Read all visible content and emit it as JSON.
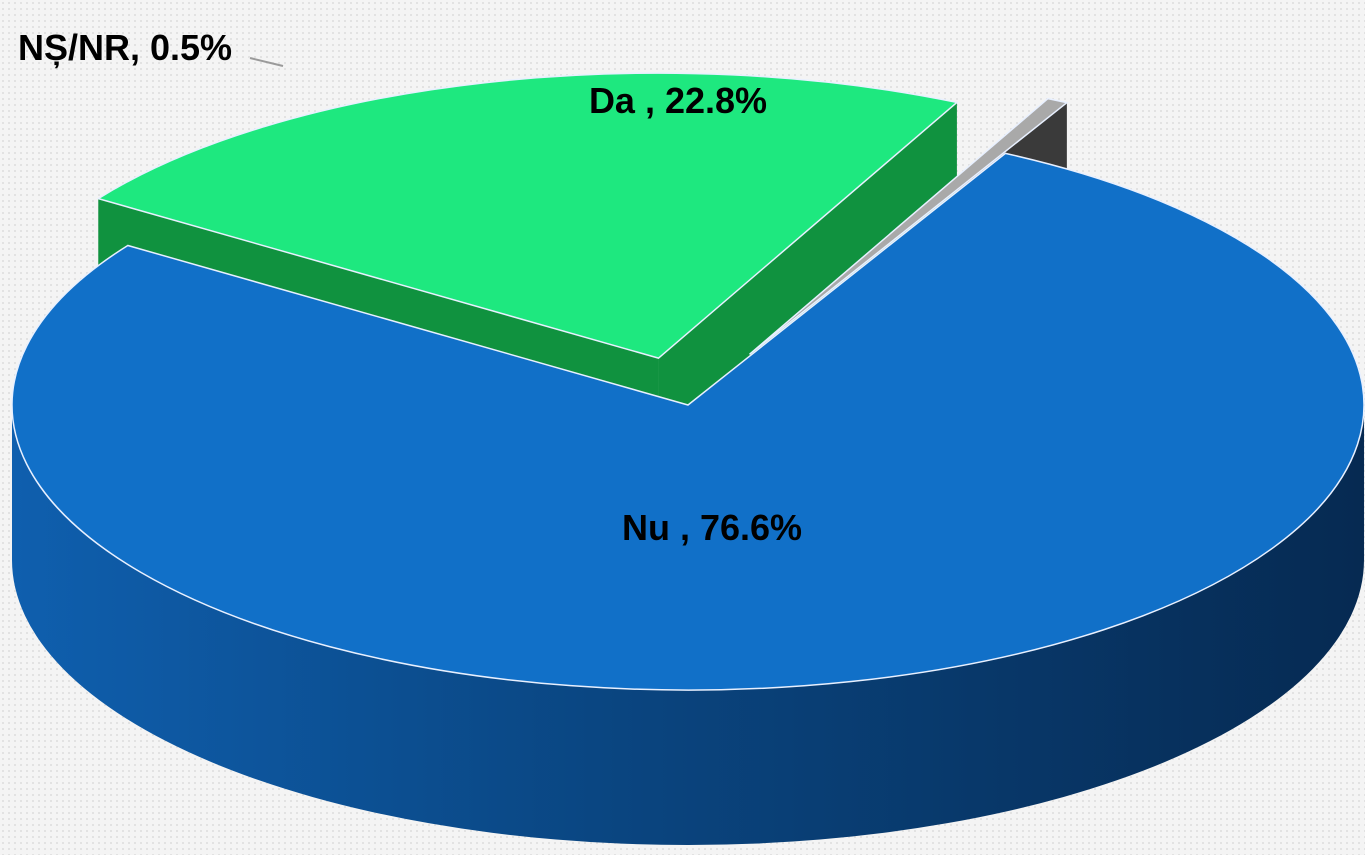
{
  "chart_data": {
    "type": "pie",
    "style": "3d-exploded",
    "slices": [
      {
        "label": "Nu",
        "value": 76.6,
        "label_text": "Nu , 76.6%",
        "color": "#1170c8",
        "side_color": "#0b4685"
      },
      {
        "label": "Da",
        "value": 22.8,
        "label_text": "Da , 22.8%",
        "color": "#1ee87f",
        "side_color": "#10923f"
      },
      {
        "label": "NȘ/NR",
        "value": 0.5,
        "label_text": "NȘ/NR, 0.5%",
        "color": "#a9a9a9",
        "side_color": "#3a3a3a"
      }
    ],
    "legend": "none"
  }
}
